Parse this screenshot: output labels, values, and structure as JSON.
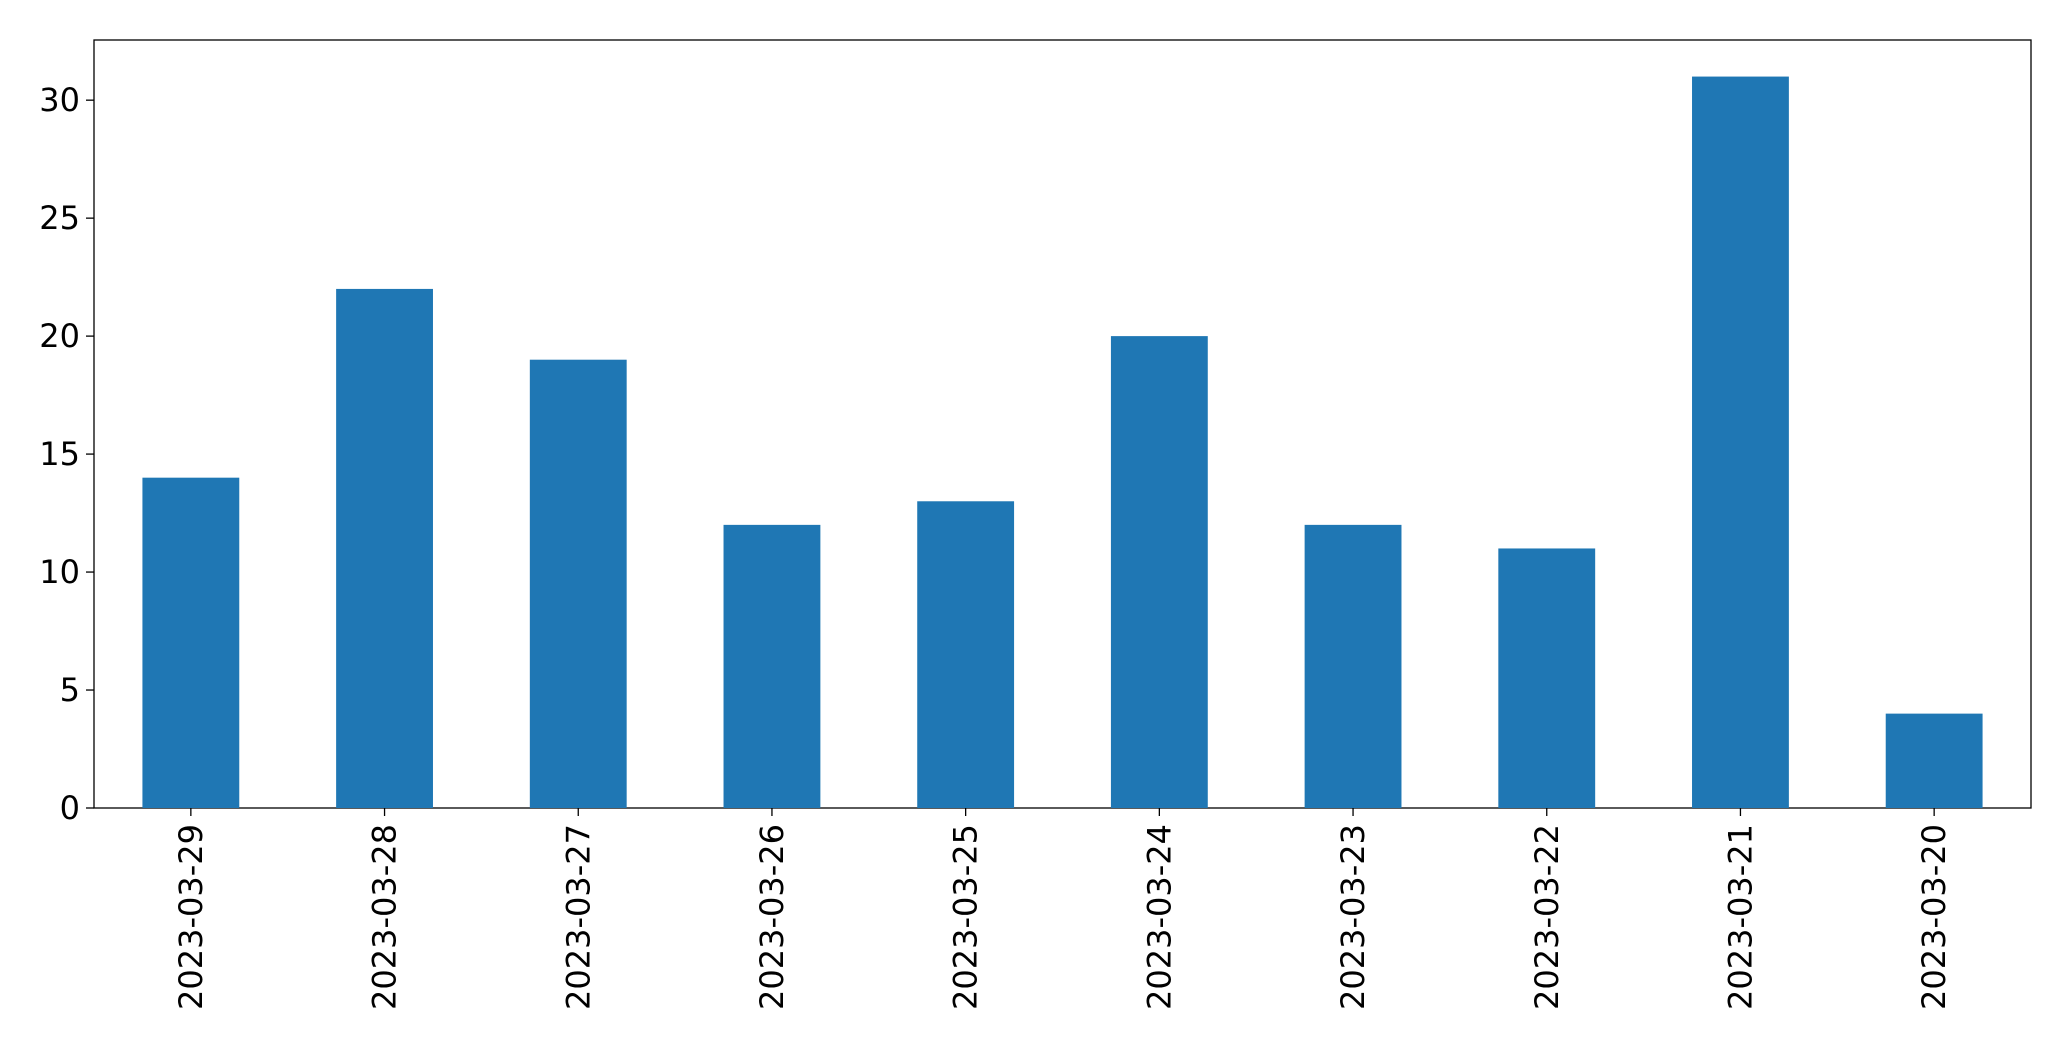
{
  "chart_data": {
    "type": "bar",
    "categories": [
      "2023-03-29",
      "2023-03-28",
      "2023-03-27",
      "2023-03-26",
      "2023-03-25",
      "2023-03-24",
      "2023-03-23",
      "2023-03-22",
      "2023-03-21",
      "2023-03-20"
    ],
    "values": [
      14,
      22,
      19,
      12,
      13,
      20,
      12,
      11,
      31,
      4
    ],
    "color": "#1f77b4",
    "ylim": [
      0,
      32.55
    ],
    "yticks": [
      0,
      5,
      10,
      15,
      20,
      25,
      30
    ],
    "grid": false
  }
}
